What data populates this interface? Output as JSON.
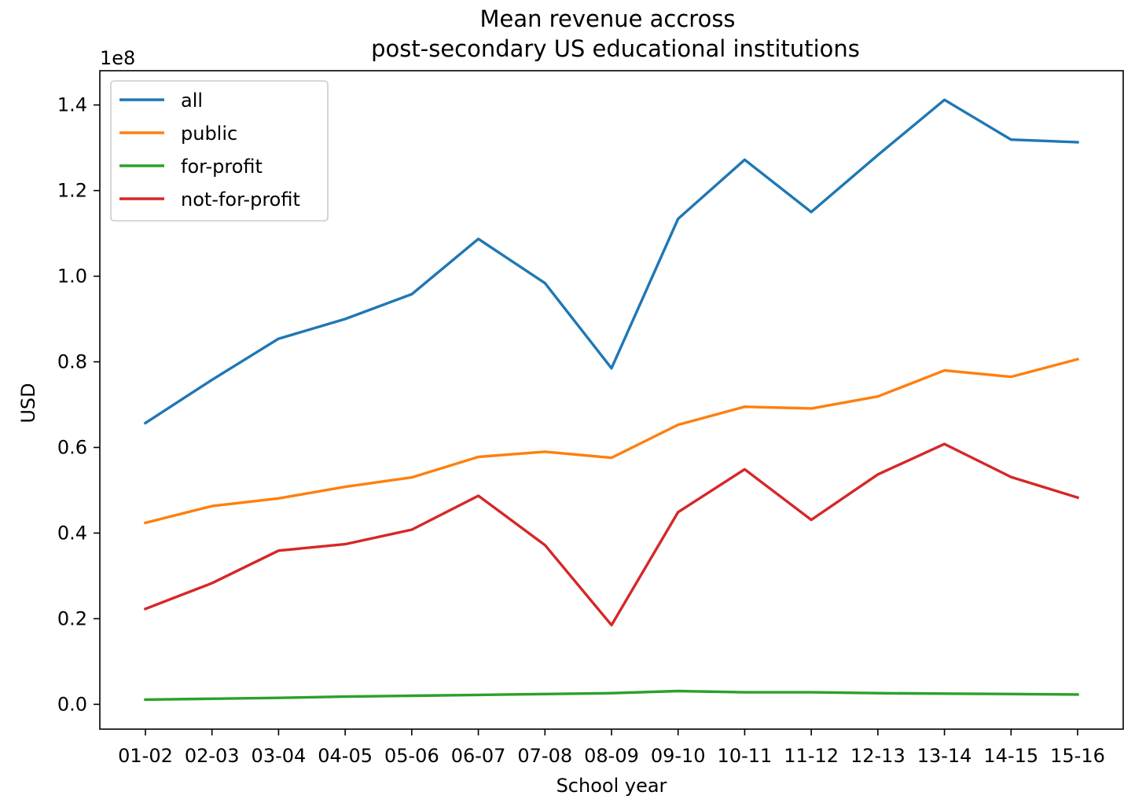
{
  "chart_data": {
    "type": "line",
    "title": [
      "Mean revenue accross",
      "post-secondary US educational institutions"
    ],
    "xlabel": "School year",
    "ylabel": "USD",
    "y_offset_label": "1e8",
    "y_scale_factor": 100000000,
    "categories": [
      "01-02",
      "02-03",
      "03-04",
      "04-05",
      "05-06",
      "06-07",
      "07-08",
      "08-09",
      "09-10",
      "10-11",
      "11-12",
      "12-13",
      "13-14",
      "14-15",
      "15-16"
    ],
    "y_ticks": [
      0.0,
      0.2,
      0.4,
      0.6,
      0.8,
      1.0,
      1.2,
      1.4
    ],
    "ylim": [
      -0.058,
      1.48
    ],
    "grid": false,
    "legend_position": "upper-left",
    "series": [
      {
        "name": "all",
        "color": "#1f77b4",
        "values": [
          0.657,
          0.758,
          0.854,
          0.9,
          0.958,
          1.087,
          0.984,
          0.785,
          1.134,
          1.272,
          1.15,
          1.283,
          1.412,
          1.319,
          1.313
        ]
      },
      {
        "name": "public",
        "color": "#ff7f0e",
        "values": [
          0.424,
          0.463,
          0.481,
          0.508,
          0.53,
          0.578,
          0.59,
          0.576,
          0.653,
          0.695,
          0.691,
          0.719,
          0.78,
          0.765,
          0.806
        ]
      },
      {
        "name": "for-profit",
        "color": "#2ca02c",
        "values": [
          0.011,
          0.013,
          0.015,
          0.018,
          0.02,
          0.022,
          0.024,
          0.026,
          0.031,
          0.028,
          0.028,
          0.026,
          0.025,
          0.024,
          0.023
        ]
      },
      {
        "name": "not-for-profit",
        "color": "#d62728",
        "values": [
          0.223,
          0.283,
          0.359,
          0.374,
          0.408,
          0.487,
          0.372,
          0.185,
          0.449,
          0.549,
          0.431,
          0.537,
          0.608,
          0.531,
          0.483
        ]
      }
    ]
  }
}
